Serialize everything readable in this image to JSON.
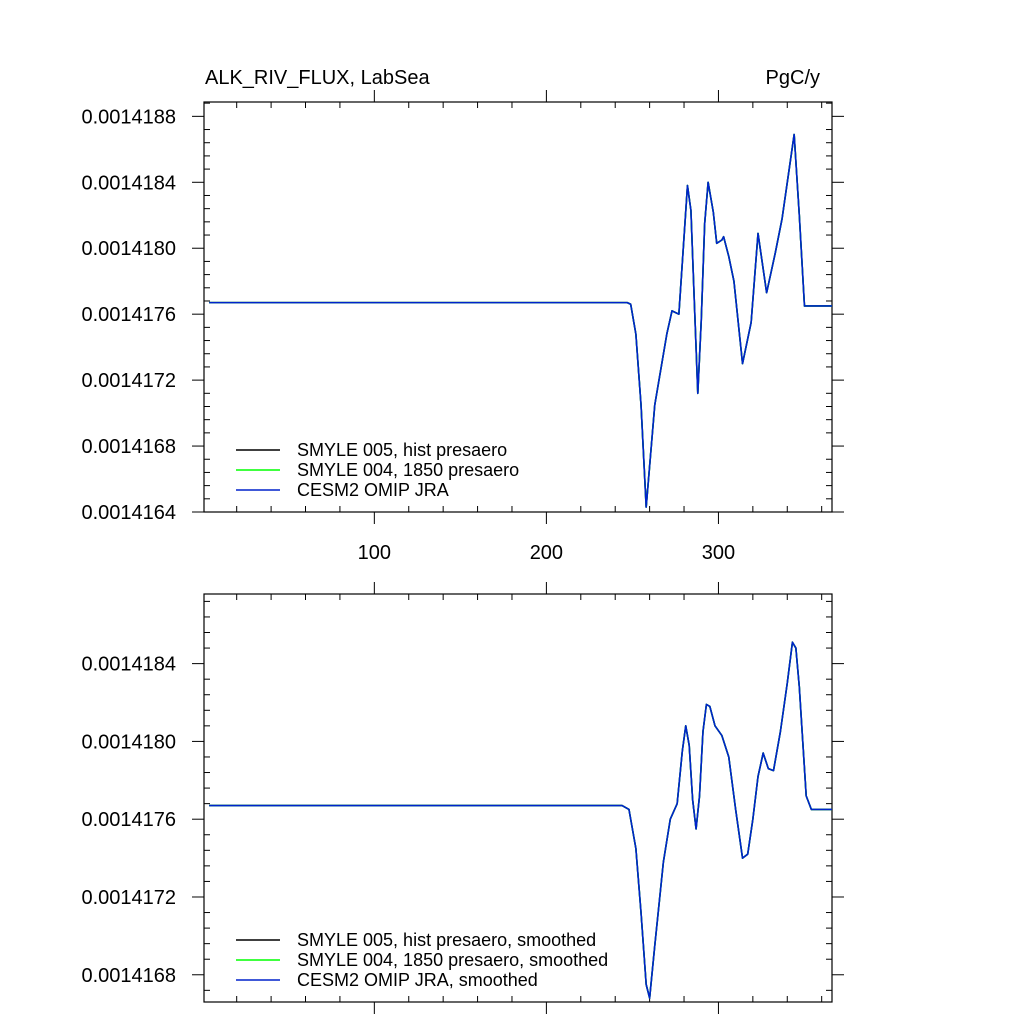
{
  "header": {
    "title": "ALK_RIV_FLUX, LabSea",
    "units": "PgC/y"
  },
  "chart_data": [
    {
      "type": "line",
      "panel": "top",
      "title": "ALK_RIV_FLUX, LabSea",
      "units": "PgC/y",
      "xlim": [
        1,
        366
      ],
      "ylim": [
        0.0014164,
        0.001418887
      ],
      "x_ticks": [
        100,
        200,
        300
      ],
      "y_ticks": [
        0.0014164,
        0.0014168,
        0.0014172,
        0.0014176,
        0.001418,
        0.0014184,
        0.0014188
      ],
      "y_tick_labels": [
        "0.0014164",
        "0.0014168",
        "0.0014172",
        "0.0014176",
        "0.0014180",
        "0.0014184",
        "0.0014188"
      ],
      "grid": false,
      "legend_position": "bottom-left",
      "series": [
        {
          "name": "SMYLE 005, hist presaero",
          "color": "#000000",
          "points": [
            [
              4,
              0.00141767
            ],
            [
              247,
              0.00141767
            ],
            [
              249,
              0.00141766
            ],
            [
              252,
              0.00141748
            ],
            [
              255,
              0.00141705
            ],
            [
              258,
              0.00141643
            ],
            [
              263,
              0.00141705
            ],
            [
              270,
              0.00141748
            ],
            [
              273,
              0.00141762
            ],
            [
              277,
              0.0014176
            ],
            [
              282,
              0.00141838
            ],
            [
              284,
              0.00141823
            ],
            [
              286,
              0.00141767
            ],
            [
              288,
              0.00141712
            ],
            [
              290,
              0.00141756
            ],
            [
              292,
              0.00141815
            ],
            [
              294,
              0.0014184
            ],
            [
              297,
              0.00141822
            ],
            [
              299,
              0.00141803
            ],
            [
              302,
              0.00141805
            ],
            [
              303,
              0.00141807
            ],
            [
              306,
              0.00141795
            ],
            [
              309,
              0.0014178
            ],
            [
              314,
              0.0014173
            ],
            [
              319,
              0.00141755
            ],
            [
              323,
              0.00141809
            ],
            [
              328,
              0.00141773
            ],
            [
              333,
              0.00141797
            ],
            [
              337,
              0.00141818
            ],
            [
              344,
              0.00141869
            ],
            [
              347,
              0.0014182
            ],
            [
              350,
              0.00141765
            ],
            [
              366,
              0.00141765
            ]
          ]
        },
        {
          "name": "SMYLE 004, 1850 presaero",
          "color": "#00ff00",
          "points": [
            [
              4,
              0.00141767
            ],
            [
              247,
              0.00141767
            ],
            [
              249,
              0.00141766
            ],
            [
              252,
              0.00141748
            ],
            [
              255,
              0.00141705
            ],
            [
              258,
              0.00141643
            ],
            [
              263,
              0.00141705
            ],
            [
              270,
              0.00141748
            ],
            [
              273,
              0.00141762
            ],
            [
              277,
              0.0014176
            ],
            [
              282,
              0.00141838
            ],
            [
              284,
              0.00141823
            ],
            [
              286,
              0.00141767
            ],
            [
              288,
              0.00141712
            ],
            [
              290,
              0.00141756
            ],
            [
              292,
              0.00141815
            ],
            [
              294,
              0.0014184
            ],
            [
              297,
              0.00141822
            ],
            [
              299,
              0.00141803
            ],
            [
              302,
              0.00141805
            ],
            [
              303,
              0.00141807
            ],
            [
              306,
              0.00141795
            ],
            [
              309,
              0.0014178
            ],
            [
              314,
              0.0014173
            ],
            [
              319,
              0.00141755
            ],
            [
              323,
              0.00141809
            ],
            [
              328,
              0.00141773
            ],
            [
              333,
              0.00141797
            ],
            [
              337,
              0.00141818
            ],
            [
              344,
              0.00141869
            ],
            [
              347,
              0.0014182
            ],
            [
              350,
              0.00141765
            ],
            [
              366,
              0.00141765
            ]
          ]
        },
        {
          "name": "CESM2 OMIP JRA",
          "color": "#0022cc",
          "points": [
            [
              4,
              0.00141767
            ],
            [
              247,
              0.00141767
            ],
            [
              249,
              0.00141766
            ],
            [
              252,
              0.00141748
            ],
            [
              255,
              0.00141705
            ],
            [
              258,
              0.00141643
            ],
            [
              263,
              0.00141705
            ],
            [
              270,
              0.00141748
            ],
            [
              273,
              0.00141762
            ],
            [
              277,
              0.0014176
            ],
            [
              282,
              0.00141838
            ],
            [
              284,
              0.00141823
            ],
            [
              286,
              0.00141767
            ],
            [
              288,
              0.00141712
            ],
            [
              290,
              0.00141756
            ],
            [
              292,
              0.00141815
            ],
            [
              294,
              0.0014184
            ],
            [
              297,
              0.00141822
            ],
            [
              299,
              0.00141803
            ],
            [
              302,
              0.00141805
            ],
            [
              303,
              0.00141807
            ],
            [
              306,
              0.00141795
            ],
            [
              309,
              0.0014178
            ],
            [
              314,
              0.0014173
            ],
            [
              319,
              0.00141755
            ],
            [
              323,
              0.00141809
            ],
            [
              328,
              0.00141773
            ],
            [
              333,
              0.00141797
            ],
            [
              337,
              0.00141818
            ],
            [
              344,
              0.00141869
            ],
            [
              347,
              0.0014182
            ],
            [
              350,
              0.00141765
            ],
            [
              366,
              0.00141765
            ]
          ]
        }
      ]
    },
    {
      "type": "line",
      "panel": "bottom",
      "xlim": [
        1,
        366
      ],
      "ylim": [
        0.00141666,
        0.001418758
      ],
      "x_ticks": [
        100,
        200,
        300
      ],
      "y_ticks": [
        0.0014168,
        0.0014172,
        0.0014176,
        0.001418,
        0.0014184
      ],
      "y_tick_labels": [
        "0.0014168",
        "0.0014172",
        "0.0014176",
        "0.0014180",
        "0.0014184"
      ],
      "grid": false,
      "legend_position": "bottom-left",
      "series": [
        {
          "name": "SMYLE 005, hist presaero, smoothed",
          "color": "#000000",
          "points": [
            [
              4,
              0.00141767
            ],
            [
              244,
              0.00141767
            ],
            [
              248,
              0.00141765
            ],
            [
              252,
              0.00141745
            ],
            [
              255,
              0.00141712
            ],
            [
              258,
              0.00141675
            ],
            [
              260,
              0.00141668
            ],
            [
              263,
              0.00141695
            ],
            [
              268,
              0.00141738
            ],
            [
              272,
              0.0014176
            ],
            [
              276,
              0.00141768
            ],
            [
              279,
              0.00141795
            ],
            [
              281,
              0.00141808
            ],
            [
              283,
              0.00141798
            ],
            [
              285,
              0.0014177
            ],
            [
              287,
              0.00141755
            ],
            [
              289,
              0.00141772
            ],
            [
              291,
              0.00141805
            ],
            [
              293,
              0.00141819
            ],
            [
              295,
              0.00141818
            ],
            [
              298,
              0.00141808
            ],
            [
              302,
              0.00141803
            ],
            [
              306,
              0.00141792
            ],
            [
              310,
              0.00141765
            ],
            [
              314,
              0.0014174
            ],
            [
              317,
              0.00141742
            ],
            [
              320,
              0.0014176
            ],
            [
              323,
              0.00141782
            ],
            [
              326,
              0.00141794
            ],
            [
              329,
              0.00141786
            ],
            [
              332,
              0.00141785
            ],
            [
              336,
              0.00141805
            ],
            [
              340,
              0.0014183
            ],
            [
              343,
              0.00141851
            ],
            [
              345,
              0.00141848
            ],
            [
              347,
              0.00141828
            ],
            [
              349,
              0.001418
            ],
            [
              351,
              0.00141772
            ],
            [
              354,
              0.00141765
            ],
            [
              366,
              0.00141765
            ]
          ]
        },
        {
          "name": "SMYLE 004, 1850 presaero, smoothed",
          "color": "#00ff00",
          "points": [
            [
              4,
              0.00141767
            ],
            [
              244,
              0.00141767
            ],
            [
              248,
              0.00141765
            ],
            [
              252,
              0.00141745
            ],
            [
              255,
              0.00141712
            ],
            [
              258,
              0.00141675
            ],
            [
              260,
              0.00141668
            ],
            [
              263,
              0.00141695
            ],
            [
              268,
              0.00141738
            ],
            [
              272,
              0.0014176
            ],
            [
              276,
              0.00141768
            ],
            [
              279,
              0.00141795
            ],
            [
              281,
              0.00141808
            ],
            [
              283,
              0.00141798
            ],
            [
              285,
              0.0014177
            ],
            [
              287,
              0.00141755
            ],
            [
              289,
              0.00141772
            ],
            [
              291,
              0.00141805
            ],
            [
              293,
              0.00141819
            ],
            [
              295,
              0.00141818
            ],
            [
              298,
              0.00141808
            ],
            [
              302,
              0.00141803
            ],
            [
              306,
              0.00141792
            ],
            [
              310,
              0.00141765
            ],
            [
              314,
              0.0014174
            ],
            [
              317,
              0.00141742
            ],
            [
              320,
              0.0014176
            ],
            [
              323,
              0.00141782
            ],
            [
              326,
              0.00141794
            ],
            [
              329,
              0.00141786
            ],
            [
              332,
              0.00141785
            ],
            [
              336,
              0.00141805
            ],
            [
              340,
              0.0014183
            ],
            [
              343,
              0.00141851
            ],
            [
              345,
              0.00141848
            ],
            [
              347,
              0.00141828
            ],
            [
              349,
              0.001418
            ],
            [
              351,
              0.00141772
            ],
            [
              354,
              0.00141765
            ],
            [
              366,
              0.00141765
            ]
          ]
        },
        {
          "name": "CESM2 OMIP JRA, smoothed",
          "color": "#0022cc",
          "points": [
            [
              4,
              0.00141767
            ],
            [
              244,
              0.00141767
            ],
            [
              248,
              0.00141765
            ],
            [
              252,
              0.00141745
            ],
            [
              255,
              0.00141712
            ],
            [
              258,
              0.00141675
            ],
            [
              260,
              0.00141668
            ],
            [
              263,
              0.00141695
            ],
            [
              268,
              0.00141738
            ],
            [
              272,
              0.0014176
            ],
            [
              276,
              0.00141768
            ],
            [
              279,
              0.00141795
            ],
            [
              281,
              0.00141808
            ],
            [
              283,
              0.00141798
            ],
            [
              285,
              0.0014177
            ],
            [
              287,
              0.00141755
            ],
            [
              289,
              0.00141772
            ],
            [
              291,
              0.00141805
            ],
            [
              293,
              0.00141819
            ],
            [
              295,
              0.00141818
            ],
            [
              298,
              0.00141808
            ],
            [
              302,
              0.00141803
            ],
            [
              306,
              0.00141792
            ],
            [
              310,
              0.00141765
            ],
            [
              314,
              0.0014174
            ],
            [
              317,
              0.00141742
            ],
            [
              320,
              0.0014176
            ],
            [
              323,
              0.00141782
            ],
            [
              326,
              0.00141794
            ],
            [
              329,
              0.00141786
            ],
            [
              332,
              0.00141785
            ],
            [
              336,
              0.00141805
            ],
            [
              340,
              0.0014183
            ],
            [
              343,
              0.00141851
            ],
            [
              345,
              0.00141848
            ],
            [
              347,
              0.00141828
            ],
            [
              349,
              0.001418
            ],
            [
              351,
              0.00141772
            ],
            [
              354,
              0.00141765
            ],
            [
              366,
              0.00141765
            ]
          ]
        }
      ]
    }
  ]
}
